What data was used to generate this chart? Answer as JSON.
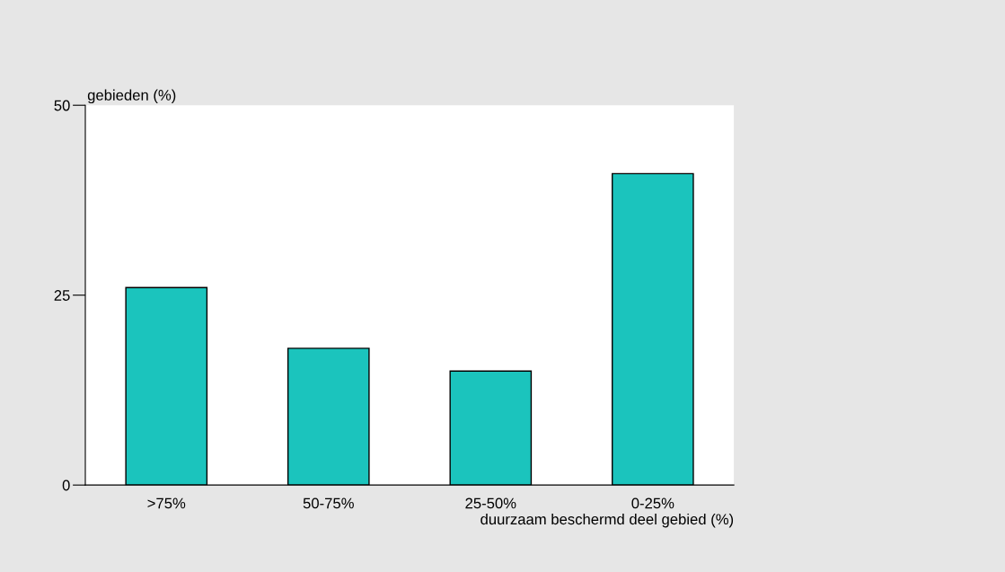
{
  "chart_data": {
    "type": "bar",
    "ylabel": "gebieden (%)",
    "xlabel": "duurzaam beschermd deel gebied (%)",
    "categories": [
      ">75%",
      "50-75%",
      "25-50%",
      "0-25%"
    ],
    "values": [
      26,
      18,
      15,
      41
    ],
    "color": "#1bc4bd",
    "ylim": [
      0,
      50
    ],
    "yticks": [
      0,
      25,
      50
    ],
    "grid": false,
    "legend": false
  }
}
